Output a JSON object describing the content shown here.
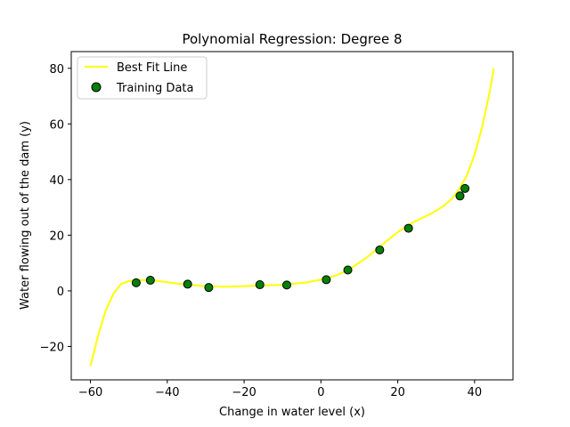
{
  "chart_data": {
    "type": "scatter",
    "title": "Polynomial Regression: Degree 8",
    "xlabel": "Change in water level (x)",
    "ylabel": "Water flowing out of the dam (y)",
    "xlim": [
      -65,
      50
    ],
    "ylim": [
      -32,
      86
    ],
    "xticks": [
      -60,
      -40,
      -20,
      0,
      20,
      40
    ],
    "xtick_labels": [
      "−60",
      "−40",
      "−20",
      "0",
      "20",
      "40"
    ],
    "yticks": [
      -20,
      0,
      20,
      40,
      60,
      80
    ],
    "ytick_labels": [
      "−20",
      "0",
      "20",
      "40",
      "60",
      "80"
    ],
    "grid": false,
    "legend_position": "top-left",
    "series": [
      {
        "name": "Best Fit Line",
        "kind": "line",
        "color": "#ffff00",
        "x": [
          -60,
          -58,
          -56,
          -54,
          -52,
          -50,
          -48,
          -46,
          -44,
          -42,
          -40,
          -38,
          -36,
          -34,
          -32,
          -30,
          -28,
          -26,
          -24,
          -22,
          -20,
          -18,
          -16,
          -14,
          -12,
          -10,
          -8,
          -6,
          -4,
          -2,
          0,
          2,
          4,
          6,
          8,
          10,
          12,
          14,
          16,
          18,
          20,
          22,
          24,
          26,
          28,
          30,
          32,
          34,
          36,
          38,
          40,
          42,
          44,
          45
        ],
        "y": [
          -27,
          -16,
          -7,
          -1,
          2.5,
          3.5,
          3.8,
          3.9,
          3.8,
          3.5,
          3.1,
          2.7,
          2.4,
          2.1,
          1.9,
          1.7,
          1.6,
          1.5,
          1.5,
          1.6,
          1.7,
          1.8,
          1.9,
          2.0,
          2.1,
          2.2,
          2.4,
          2.7,
          3.0,
          3.5,
          4.0,
          4.7,
          5.6,
          6.8,
          8.3,
          10.1,
          12.1,
          14.3,
          16.6,
          18.9,
          21.1,
          23.0,
          24.6,
          26.0,
          27.3,
          28.8,
          30.6,
          33.0,
          36.5,
          41.5,
          49,
          59,
          72,
          80
        ]
      },
      {
        "name": "Training Data",
        "kind": "scatter",
        "color": "#008000",
        "edgecolor": "#000000",
        "x": [
          -48.1,
          -44.4,
          -34.7,
          -29.2,
          -15.9,
          -8.9,
          1.4,
          7.0,
          15.3,
          22.8,
          36.2,
          37.5
        ],
        "y": [
          2.9,
          3.8,
          2.4,
          1.2,
          2.2,
          2.1,
          4.0,
          7.5,
          14.7,
          22.5,
          34.1,
          36.8
        ]
      }
    ]
  }
}
